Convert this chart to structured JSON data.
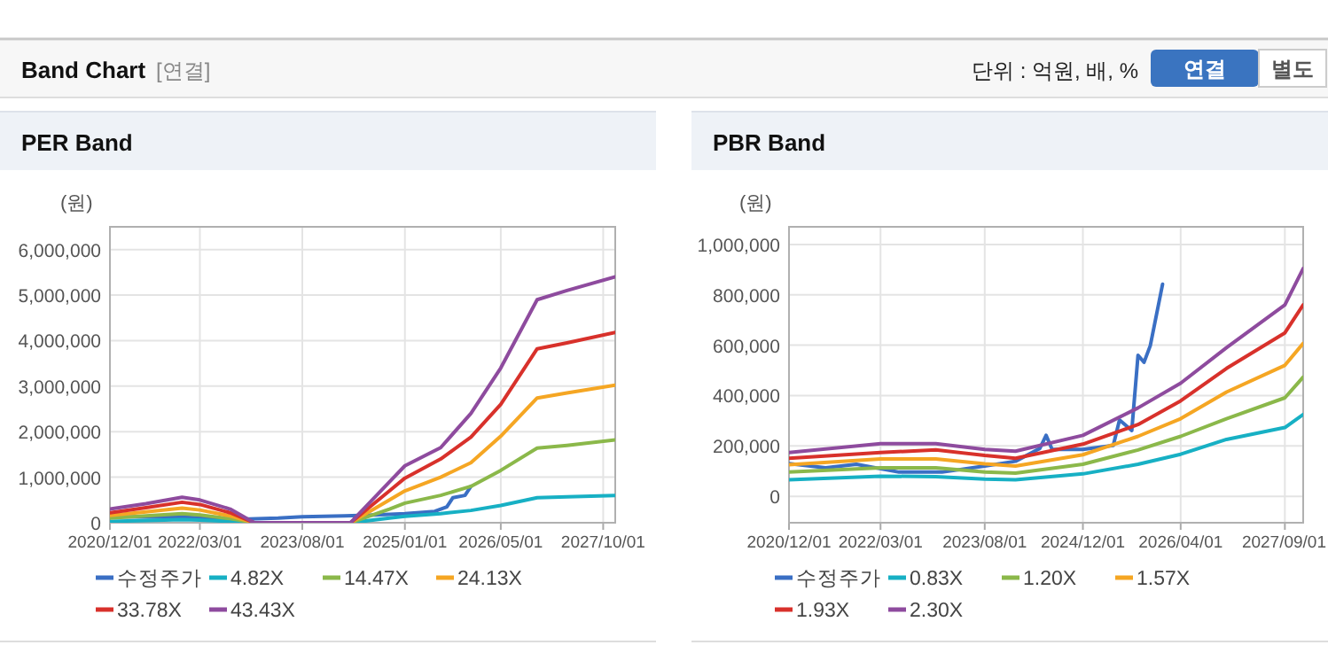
{
  "chart_data": [
    {
      "type": "other",
      "title": "Band Chart",
      "annotations": [
        "[연결]",
        "단위 : 억원, 배, %",
        "연결",
        "별도"
      ]
    },
    {
      "type": "line",
      "title": "PER Band",
      "ylabel": "(원)",
      "grid": true,
      "legend": "bottom",
      "x": [
        "2020-12-01",
        "2021-06-01",
        "2021-12-01",
        "2022-03-01",
        "2022-08-01",
        "2022-12-01",
        "2024-04-01",
        "2024-10-15",
        "2025-01-01",
        "2025-07-01",
        "2025-12-01",
        "2026-05-01",
        "2026-11-01",
        "2027-04-01",
        "2027-12-01"
      ],
      "xlim": [
        "2020-12-01",
        "2027-12-01"
      ],
      "xticks": [
        {
          "value": "2020-12-01",
          "label": "2020/12/01"
        },
        {
          "value": "2022-03-01",
          "label": "2022/03/01"
        },
        {
          "value": "2023-08-01",
          "label": "2023/08/01"
        },
        {
          "value": "2025-01-01",
          "label": "2025/01/01"
        },
        {
          "value": "2026-05-01",
          "label": "2026/05/01"
        },
        {
          "value": "2027-10-01",
          "label": "2027/10/01"
        }
      ],
      "ylim": [
        0,
        6500000
      ],
      "yticks": [
        {
          "value": 0,
          "label": "0"
        },
        {
          "value": 1000000,
          "label": "1,000,000"
        },
        {
          "value": 2000000,
          "label": "2,000,000"
        },
        {
          "value": 3000000,
          "label": "3,000,000"
        },
        {
          "value": 4000000,
          "label": "4,000,000"
        },
        {
          "value": 5000000,
          "label": "5,000,000"
        },
        {
          "value": 6000000,
          "label": "6,000,000"
        }
      ],
      "series": [
        {
          "name": "수정주가",
          "color": "#3a6fc4",
          "x": [
            "2020-12-01",
            "2021-12-01",
            "2022-10-01",
            "2023-04-01",
            "2023-08-01",
            "2024-03-01",
            "2024-08-01",
            "2025-01-01",
            "2025-06-01",
            "2025-08-01",
            "2025-09-01",
            "2025-11-01",
            "2025-12-01"
          ],
          "values": [
            130000,
            120000,
            80000,
            100000,
            130000,
            150000,
            170000,
            200000,
            250000,
            350000,
            550000,
            600000,
            800000
          ]
        },
        {
          "name": "4.82X",
          "color": "#17b0c4",
          "values": [
            30000,
            50000,
            70000,
            60000,
            30000,
            0,
            0,
            100000,
            140000,
            200000,
            270000,
            380000,
            550000,
            570000,
            600000
          ]
        },
        {
          "name": "14.47X",
          "color": "#8bb84a",
          "values": [
            100000,
            150000,
            200000,
            170000,
            90000,
            0,
            0,
            300000,
            430000,
            600000,
            800000,
            1150000,
            1640000,
            1700000,
            1820000
          ]
        },
        {
          "name": "24.13X",
          "color": "#f5a623",
          "values": [
            160000,
            240000,
            320000,
            280000,
            150000,
            0,
            0,
            500000,
            700000,
            1000000,
            1320000,
            1900000,
            2740000,
            2850000,
            3020000
          ]
        },
        {
          "name": "33.78X",
          "color": "#d8312b",
          "values": [
            220000,
            330000,
            450000,
            400000,
            220000,
            0,
            0,
            700000,
            980000,
            1400000,
            1880000,
            2600000,
            3820000,
            3950000,
            4180000
          ]
        },
        {
          "name": "43.43X",
          "color": "#8e4b9e",
          "values": [
            300000,
            420000,
            560000,
            500000,
            300000,
            0,
            0,
            900000,
            1250000,
            1650000,
            2400000,
            3400000,
            4900000,
            5100000,
            5400000
          ]
        }
      ]
    },
    {
      "type": "line",
      "title": "PBR Band",
      "ylabel": "(원)",
      "grid": true,
      "legend": "bottom",
      "x": [
        "2020-12-01",
        "2022-03-01",
        "2022-12-01",
        "2023-08-01",
        "2024-01-01",
        "2024-12-01",
        "2025-09-01",
        "2026-04-01",
        "2026-11-15",
        "2027-09-01",
        "2027-12-01"
      ],
      "xlim": [
        "2020-12-01",
        "2027-12-01"
      ],
      "xticks": [
        {
          "value": "2020-12-01",
          "label": "2020/12/01"
        },
        {
          "value": "2022-03-01",
          "label": "2022/03/01"
        },
        {
          "value": "2023-08-01",
          "label": "2023/08/01"
        },
        {
          "value": "2024-12-01",
          "label": "2024/12/01"
        },
        {
          "value": "2026-04-01",
          "label": "2026/04/01"
        },
        {
          "value": "2027-09-01",
          "label": "2027/09/01"
        }
      ],
      "ylim": [
        -105000,
        1070000
      ],
      "yticks": [
        {
          "value": 0,
          "label": "0"
        },
        {
          "value": 200000,
          "label": "200,000"
        },
        {
          "value": 400000,
          "label": "400,000"
        },
        {
          "value": 600000,
          "label": "600,000"
        },
        {
          "value": 800000,
          "label": "800,000"
        },
        {
          "value": 1000000,
          "label": "1,000,000"
        }
      ],
      "series": [
        {
          "name": "수정주가",
          "color": "#3a6fc4",
          "x": [
            "2020-12-01",
            "2021-06-01",
            "2021-11-01",
            "2022-06-01",
            "2023-01-01",
            "2023-08-01",
            "2024-01-01",
            "2024-05-01",
            "2024-06-01",
            "2024-07-01",
            "2024-12-01",
            "2025-05-01",
            "2025-06-01",
            "2025-08-01",
            "2025-09-01",
            "2025-10-01",
            "2025-11-01",
            "2026-01-01"
          ],
          "values": [
            130000,
            113000,
            127000,
            96000,
            96000,
            120000,
            139000,
            190000,
            242000,
            186000,
            186000,
            202000,
            303000,
            261000,
            560000,
            532000,
            598000,
            842000
          ]
        },
        {
          "name": "0.83X",
          "color": "#17b0c4",
          "values": [
            66000,
            80000,
            78000,
            68000,
            66000,
            89000,
            127000,
            167000,
            226000,
            273000,
            325000
          ]
        },
        {
          "name": "1.20X",
          "color": "#8bb84a",
          "values": [
            96000,
            113000,
            113000,
            96000,
            92000,
            127000,
            184000,
            238000,
            308000,
            391000,
            473000
          ]
        },
        {
          "name": "1.57X",
          "color": "#f5a623",
          "values": [
            125000,
            148000,
            148000,
            129000,
            120000,
            165000,
            238000,
            308000,
            414000,
            520000,
            607000
          ]
        },
        {
          "name": "1.93X",
          "color": "#d8312b",
          "values": [
            151000,
            174000,
            184000,
            162000,
            151000,
            207000,
            285000,
            379000,
            508000,
            649000,
            760000
          ]
        },
        {
          "name": "2.30X",
          "color": "#8e4b9e",
          "values": [
            174000,
            209000,
            209000,
            186000,
            179000,
            242000,
            351000,
            449000,
            590000,
            760000,
            904000
          ]
        }
      ]
    }
  ]
}
